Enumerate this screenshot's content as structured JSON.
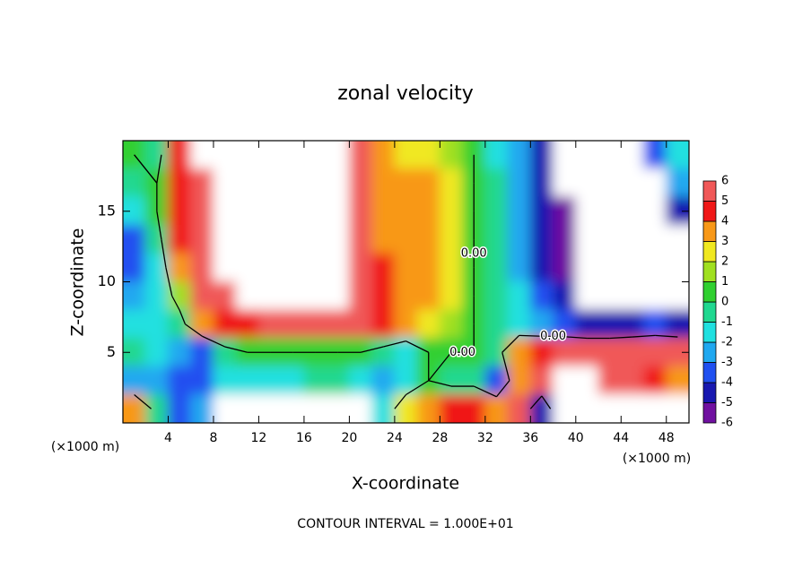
{
  "chart_data": {
    "type": "contour",
    "title": "zonal velocity",
    "x_label": "X-coordinate",
    "y_label": "Z-coordinate",
    "x_unit_left": "(×1000 m)",
    "x_unit_right": "(×1000 m)",
    "footer": "CONTOUR INTERVAL = 1.000E+01",
    "xlim": [
      0,
      50
    ],
    "ylim": [
      0,
      20
    ],
    "xticks": [
      4,
      8,
      12,
      16,
      20,
      24,
      28,
      32,
      36,
      40,
      44,
      48
    ],
    "yticks": [
      5,
      10,
      15
    ],
    "x": [
      1,
      3,
      5,
      7,
      9,
      11,
      13,
      15,
      17,
      19,
      21,
      23,
      25,
      27,
      29,
      31,
      33,
      35,
      37,
      39,
      41,
      43,
      45,
      47,
      49
    ],
    "y": [
      19,
      17,
      15,
      13,
      11,
      9,
      7,
      5,
      3,
      1
    ],
    "z": [
      [
        0,
        -1,
        4,
        8,
        8,
        8,
        8,
        8,
        8,
        8,
        5,
        3,
        2,
        2,
        1,
        0,
        -2,
        -3,
        -5,
        -8,
        -8,
        -8,
        -8,
        -4,
        -2
      ],
      [
        -1,
        0,
        4,
        5,
        8,
        8,
        8,
        8,
        8,
        8,
        5,
        3,
        3,
        3,
        2,
        0,
        -1,
        -3,
        -5,
        -8,
        -8,
        -8,
        -8,
        -8,
        -3
      ],
      [
        -2,
        0,
        4,
        5,
        8,
        8,
        8,
        8,
        8,
        8,
        5,
        3,
        3,
        3,
        2,
        0,
        -1,
        -3,
        -5,
        -6,
        -8,
        -8,
        -8,
        -8,
        -5
      ],
      [
        -4,
        -1,
        4,
        5,
        8,
        8,
        8,
        8,
        8,
        8,
        5,
        3,
        3,
        3,
        2,
        0,
        -1,
        -3,
        -5,
        -6,
        -8,
        -8,
        -8,
        -8,
        -8
      ],
      [
        -4,
        -2,
        3,
        5,
        8,
        8,
        8,
        8,
        8,
        8,
        5,
        4,
        3,
        3,
        2,
        0,
        -1,
        -3,
        -5,
        -6,
        -8,
        -8,
        -8,
        -8,
        -8
      ],
      [
        -3,
        -2,
        1,
        5,
        6,
        8,
        8,
        8,
        8,
        8,
        5,
        4,
        3,
        3,
        2,
        0,
        -1,
        -2,
        -4,
        -5,
        -8,
        -8,
        -8,
        -8,
        -8
      ],
      [
        -2,
        -2,
        -1,
        3,
        4,
        4,
        5,
        5,
        5,
        5,
        5,
        4,
        3,
        2,
        1,
        0,
        -1,
        -2,
        -3,
        -4,
        -5,
        -5,
        -5,
        -4,
        -5
      ],
      [
        -1,
        -2,
        -3,
        -4,
        -1,
        0,
        0,
        0,
        0,
        0,
        0,
        -1,
        -2,
        0,
        0,
        0,
        -1,
        3,
        4,
        5,
        5,
        5,
        6,
        6,
        6
      ],
      [
        -3,
        -3,
        -4,
        -4,
        -2,
        -2,
        -2,
        -2,
        -1,
        -1,
        -2,
        -3,
        -2,
        0,
        -1,
        -1,
        -4,
        3,
        6,
        8,
        8,
        6,
        5,
        4,
        3
      ],
      [
        3,
        -1,
        -4,
        -3,
        -8,
        -8,
        -8,
        -8,
        -8,
        -8,
        -8,
        -2,
        2,
        3,
        4,
        4,
        3,
        5,
        -5,
        8,
        8,
        8,
        8,
        8,
        8
      ]
    ],
    "contour_level": {
      "value": 0,
      "label": "0.00"
    },
    "colorbar_ticks": [
      6,
      5,
      4,
      3,
      2,
      1,
      0,
      -1,
      -2,
      -3,
      -4,
      -5,
      -6
    ],
    "colors": [
      "#7010a0",
      "#1818b0",
      "#2050f0",
      "#20a8f0",
      "#20e0e0",
      "#20d890",
      "#30d030",
      "#a0e020",
      "#f0e820",
      "#f89818",
      "#f01818",
      "#f05858"
    ]
  }
}
